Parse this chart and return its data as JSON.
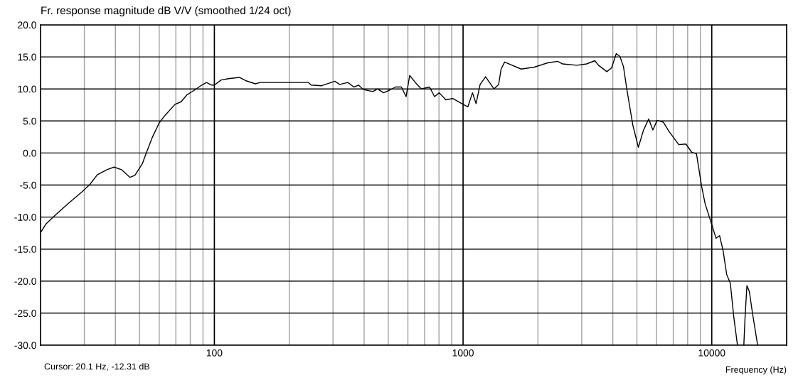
{
  "chart_data": {
    "type": "line",
    "title": "Fr. response magnitude dB V/V (smoothed 1/24 oct)",
    "xlabel": "Frequency (Hz)",
    "annotations": [
      "Cursor: 20.1 Hz, -12.31 dB"
    ],
    "log": "x",
    "grid": true,
    "line_style": "solid",
    "marker": "none",
    "xlim": [
      20,
      20000
    ],
    "xticks": [
      {
        "value": 20,
        "label": null
      },
      {
        "value": 30,
        "label": null
      },
      {
        "value": 40,
        "label": null
      },
      {
        "value": 50,
        "label": null
      },
      {
        "value": 60,
        "label": null
      },
      {
        "value": 70,
        "label": null
      },
      {
        "value": 80,
        "label": null
      },
      {
        "value": 90,
        "label": null
      },
      100,
      {
        "value": 200,
        "label": null
      },
      {
        "value": 300,
        "label": null
      },
      {
        "value": 400,
        "label": null
      },
      {
        "value": 500,
        "label": null
      },
      {
        "value": 600,
        "label": null
      },
      {
        "value": 700,
        "label": null
      },
      {
        "value": 800,
        "label": null
      },
      {
        "value": 900,
        "label": null
      },
      1000,
      {
        "value": 2000,
        "label": null
      },
      {
        "value": 3000,
        "label": null
      },
      {
        "value": 4000,
        "label": null
      },
      {
        "value": 5000,
        "label": null
      },
      {
        "value": 6000,
        "label": null
      },
      {
        "value": 7000,
        "label": null
      },
      {
        "value": 8000,
        "label": null
      },
      {
        "value": 9000,
        "label": null
      },
      10000,
      {
        "value": 20000,
        "label": null
      }
    ],
    "ylim": [
      -30,
      20
    ],
    "yticks": [
      {
        "value": -30,
        "label": "-30.0"
      },
      {
        "value": -25,
        "label": "-25.0"
      },
      {
        "value": -20,
        "label": "-20.0"
      },
      {
        "value": -15,
        "label": "-15.0"
      },
      {
        "value": -10,
        "label": "-10.0"
      },
      {
        "value": -5,
        "label": "-5.0"
      },
      {
        "value": 0,
        "label": "0.0"
      },
      {
        "value": 5,
        "label": "5.0"
      },
      {
        "value": 10,
        "label": "10.0"
      },
      {
        "value": 15,
        "label": "15.0"
      },
      {
        "value": 20,
        "label": "20.0"
      }
    ],
    "series": [
      {
        "color": "#000000",
        "x": [
          20.1,
          21.0,
          22.5,
          25.8,
          29.5,
          31.6,
          33.8,
          37.0,
          39.5,
          42.3,
          45.8,
          47.9,
          51.3,
          53.0,
          56.1,
          60.0,
          63.4,
          69.5,
          73.5,
          77.7,
          83.1,
          89.0,
          93.0,
          97.4,
          100,
          106.5,
          113.9,
          126.1,
          133.4,
          146.1,
          152.9,
          239,
          245,
          270,
          305,
          319,
          344,
          364,
          380,
          397,
          434,
          453,
          479,
          506,
          535,
          565,
          590,
          610,
          643,
          679,
          733,
          768,
          802,
          852,
          909,
          1000,
          1045,
          1091,
          1128,
          1171,
          1232,
          1331,
          1390,
          1422,
          1469,
          1551,
          1712,
          1934,
          2202,
          2403,
          2513,
          2869,
          3138,
          3388,
          3503,
          3786,
          3955,
          4131,
          4270,
          4414,
          4561,
          4818,
          5068,
          5309,
          5574,
          5797,
          6030,
          6387,
          6750,
          7370,
          7868,
          8310,
          8678,
          9104,
          9399,
          9911,
          10404,
          10751,
          11112,
          11486,
          11872,
          12269,
          12685,
          12900,
          13455,
          13607,
          13846,
          14158,
          14565,
          15290
        ],
        "values": [
          -12.3,
          -11.1,
          -10.0,
          -7.9,
          -6.0,
          -4.9,
          -3.4,
          -2.6,
          -2.2,
          -2.6,
          -3.8,
          -3.5,
          -1.7,
          -0.2,
          2.3,
          4.7,
          5.9,
          7.6,
          8.0,
          9.1,
          9.8,
          10.6,
          11.0,
          10.6,
          10.6,
          11.4,
          11.6,
          11.8,
          11.3,
          10.8,
          11.0,
          11.0,
          10.6,
          10.5,
          11.2,
          10.7,
          11.0,
          10.3,
          10.6,
          9.9,
          9.6,
          10.0,
          9.4,
          9.8,
          10.3,
          10.3,
          8.8,
          12.1,
          11.0,
          10.0,
          10.3,
          8.8,
          9.4,
          8.3,
          8.5,
          7.6,
          7.2,
          9.4,
          7.7,
          10.7,
          11.9,
          10.0,
          10.7,
          13.1,
          14.2,
          13.8,
          13.1,
          13.4,
          14.1,
          14.3,
          13.9,
          13.7,
          13.9,
          14.4,
          13.7,
          12.7,
          13.3,
          15.5,
          15.1,
          13.5,
          9.8,
          4.3,
          0.9,
          3.5,
          5.3,
          3.6,
          5.1,
          4.8,
          3.3,
          1.3,
          1.4,
          0.1,
          -0.1,
          -5.2,
          -7.9,
          -10.7,
          -13.3,
          -12.9,
          -15.3,
          -19.0,
          -20.3,
          -25.7,
          -30,
          null,
          -30,
          -25.7,
          -20.7,
          -21.6,
          -24.9,
          -30
        ]
      }
    ]
  }
}
